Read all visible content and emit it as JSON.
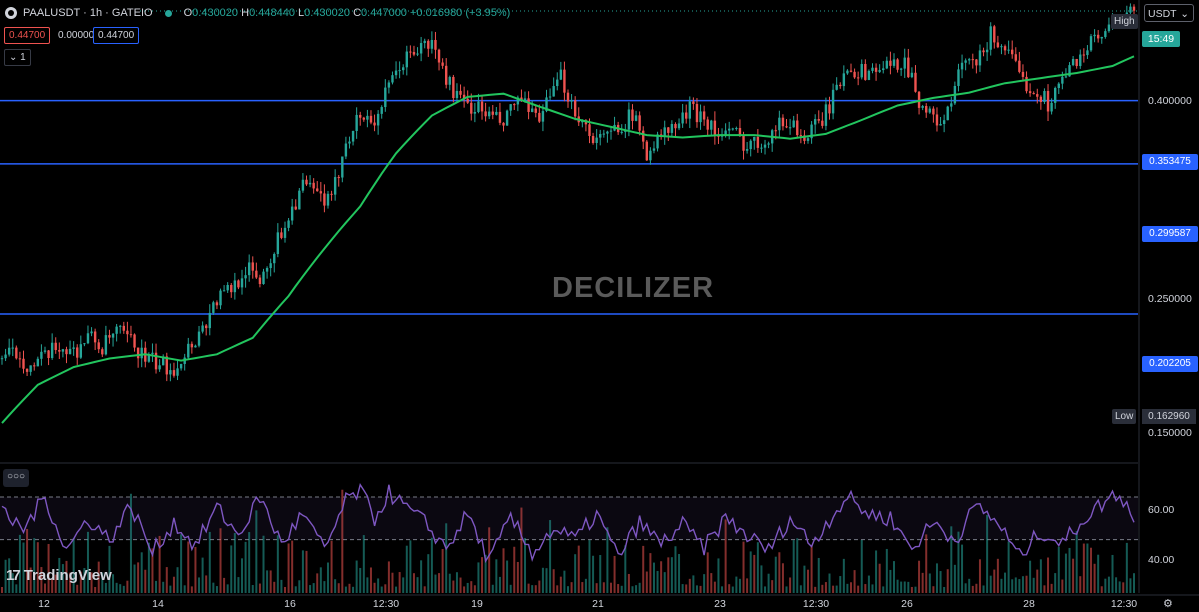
{
  "header": {
    "symbol": "PAALUSDT",
    "timeframe": "1h",
    "exchange": "GATEIO",
    "title": "PAALUSDT · 1h · GATEIO",
    "o_label": "O",
    "o_value": "0.430020",
    "h_label": "H",
    "h_value": "0.448440",
    "l_label": "L",
    "l_value": "0.430020",
    "c_label": "C",
    "c_value": "0.447000",
    "change": "+0.016980 (+3.95%)"
  },
  "order_boxes": {
    "sell": "0.44700",
    "spread": "0.00000",
    "buy": "0.44700"
  },
  "indicator_toggle": "1",
  "currency_selector": "USDT",
  "price_scale": {
    "ticks": [
      "0.400000",
      "0.250000",
      "0.150000"
    ],
    "high_label": "High",
    "low_label": "Low",
    "low_value": "0.162960",
    "countdown": "15:49"
  },
  "rsi_scale": {
    "ticks": [
      "60.00",
      "40.00"
    ]
  },
  "watermark": "DECILIZER",
  "branding": "TradingView",
  "x_axis": [
    "12",
    "14",
    "16",
    "12:30",
    "19",
    "21",
    "23",
    "12:30",
    "26",
    "28",
    "12:30"
  ],
  "colors": {
    "up": "#26a69a",
    "down": "#ef5350",
    "ma": "#22c55e",
    "level": "#2962ff",
    "rsi": "#7e57c2"
  },
  "chart_data": {
    "type": "candlestick",
    "y_scale": "log",
    "ylim": [
      0.138,
      0.46
    ],
    "horizontal_levels": [
      0.353475,
      0.299587,
      0.202205
    ],
    "level_labels": [
      "0.353475",
      "0.299587",
      "0.202205"
    ],
    "high": 0.44844,
    "low": 0.16296,
    "current_price": 0.447,
    "close_trend": [
      [
        0,
        0.18
      ],
      [
        4,
        0.183
      ],
      [
        8,
        0.176
      ],
      [
        12,
        0.18
      ],
      [
        16,
        0.186
      ],
      [
        20,
        0.183
      ],
      [
        24,
        0.191
      ],
      [
        28,
        0.185
      ],
      [
        32,
        0.193
      ],
      [
        36,
        0.188
      ],
      [
        40,
        0.18
      ],
      [
        44,
        0.177
      ],
      [
        48,
        0.176
      ],
      [
        52,
        0.185
      ],
      [
        56,
        0.195
      ],
      [
        60,
        0.21
      ],
      [
        64,
        0.216
      ],
      [
        68,
        0.228
      ],
      [
        72,
        0.221
      ],
      [
        76,
        0.24
      ],
      [
        80,
        0.262
      ],
      [
        84,
        0.283
      ],
      [
        88,
        0.276
      ],
      [
        92,
        0.27
      ],
      [
        96,
        0.32
      ],
      [
        100,
        0.34
      ],
      [
        104,
        0.335
      ],
      [
        108,
        0.365
      ],
      [
        112,
        0.392
      ],
      [
        116,
        0.405
      ],
      [
        120,
        0.41
      ],
      [
        124,
        0.375
      ],
      [
        128,
        0.352
      ],
      [
        132,
        0.348
      ],
      [
        136,
        0.34
      ],
      [
        140,
        0.332
      ],
      [
        144,
        0.356
      ],
      [
        148,
        0.338
      ],
      [
        152,
        0.348
      ],
      [
        156,
        0.375
      ],
      [
        160,
        0.345
      ],
      [
        164,
        0.325
      ],
      [
        168,
        0.318
      ],
      [
        172,
        0.332
      ],
      [
        176,
        0.34
      ],
      [
        180,
        0.31
      ],
      [
        184,
        0.322
      ],
      [
        188,
        0.33
      ],
      [
        192,
        0.345
      ],
      [
        196,
        0.34
      ],
      [
        200,
        0.322
      ],
      [
        204,
        0.325
      ],
      [
        208,
        0.315
      ],
      [
        212,
        0.318
      ],
      [
        216,
        0.33
      ],
      [
        220,
        0.336
      ],
      [
        224,
        0.32
      ],
      [
        228,
        0.332
      ],
      [
        232,
        0.355
      ],
      [
        236,
        0.39
      ],
      [
        240,
        0.38
      ],
      [
        244,
        0.385
      ],
      [
        248,
        0.385
      ],
      [
        252,
        0.395
      ],
      [
        256,
        0.355
      ],
      [
        260,
        0.335
      ],
      [
        264,
        0.34
      ],
      [
        268,
        0.39
      ],
      [
        272,
        0.386
      ],
      [
        276,
        0.42
      ],
      [
        280,
        0.407
      ],
      [
        284,
        0.375
      ],
      [
        288,
        0.365
      ],
      [
        292,
        0.352
      ],
      [
        296,
        0.372
      ],
      [
        300,
        0.395
      ],
      [
        304,
        0.41
      ],
      [
        308,
        0.42
      ],
      [
        312,
        0.44
      ],
      [
        316,
        0.447
      ]
    ],
    "ma_trend": [
      [
        0,
        0.152
      ],
      [
        10,
        0.168
      ],
      [
        20,
        0.176
      ],
      [
        30,
        0.18
      ],
      [
        40,
        0.182
      ],
      [
        50,
        0.179
      ],
      [
        60,
        0.182
      ],
      [
        70,
        0.19
      ],
      [
        80,
        0.212
      ],
      [
        90,
        0.24
      ],
      [
        100,
        0.268
      ],
      [
        110,
        0.308
      ],
      [
        120,
        0.34
      ],
      [
        130,
        0.357
      ],
      [
        140,
        0.36
      ],
      [
        150,
        0.348
      ],
      [
        160,
        0.337
      ],
      [
        170,
        0.33
      ],
      [
        180,
        0.323
      ],
      [
        190,
        0.321
      ],
      [
        200,
        0.323
      ],
      [
        210,
        0.323
      ],
      [
        220,
        0.32
      ],
      [
        230,
        0.324
      ],
      [
        240,
        0.336
      ],
      [
        250,
        0.349
      ],
      [
        260,
        0.356
      ],
      [
        270,
        0.361
      ],
      [
        280,
        0.37
      ],
      [
        290,
        0.375
      ],
      [
        300,
        0.38
      ],
      [
        310,
        0.387
      ],
      [
        316,
        0.397
      ]
    ],
    "rsi": {
      "ylim": [
        25,
        85
      ],
      "upper_band": 70,
      "lower_band": 50,
      "trend": [
        [
          0,
          62
        ],
        [
          6,
          55
        ],
        [
          12,
          70
        ],
        [
          18,
          45
        ],
        [
          24,
          60
        ],
        [
          30,
          50
        ],
        [
          36,
          66
        ],
        [
          42,
          44
        ],
        [
          48,
          58
        ],
        [
          54,
          47
        ],
        [
          60,
          65
        ],
        [
          66,
          52
        ],
        [
          72,
          70
        ],
        [
          78,
          48
        ],
        [
          84,
          62
        ],
        [
          90,
          45
        ],
        [
          96,
          68
        ],
        [
          100,
          73
        ],
        [
          104,
          60
        ],
        [
          108,
          72
        ],
        [
          112,
          66
        ],
        [
          118,
          58
        ],
        [
          124,
          46
        ],
        [
          130,
          62
        ],
        [
          136,
          40
        ],
        [
          142,
          60
        ],
        [
          148,
          44
        ],
        [
          154,
          55
        ],
        [
          160,
          50
        ],
        [
          166,
          62
        ],
        [
          172,
          42
        ],
        [
          178,
          58
        ],
        [
          184,
          48
        ],
        [
          190,
          57
        ],
        [
          196,
          46
        ],
        [
          202,
          60
        ],
        [
          208,
          52
        ],
        [
          214,
          45
        ],
        [
          220,
          60
        ],
        [
          226,
          48
        ],
        [
          232,
          62
        ],
        [
          236,
          70
        ],
        [
          242,
          62
        ],
        [
          248,
          60
        ],
        [
          254,
          46
        ],
        [
          260,
          58
        ],
        [
          266,
          50
        ],
        [
          272,
          66
        ],
        [
          278,
          58
        ],
        [
          284,
          42
        ],
        [
          290,
          54
        ],
        [
          296,
          48
        ],
        [
          302,
          60
        ],
        [
          308,
          68
        ],
        [
          312,
          72
        ],
        [
          316,
          60
        ]
      ]
    }
  }
}
